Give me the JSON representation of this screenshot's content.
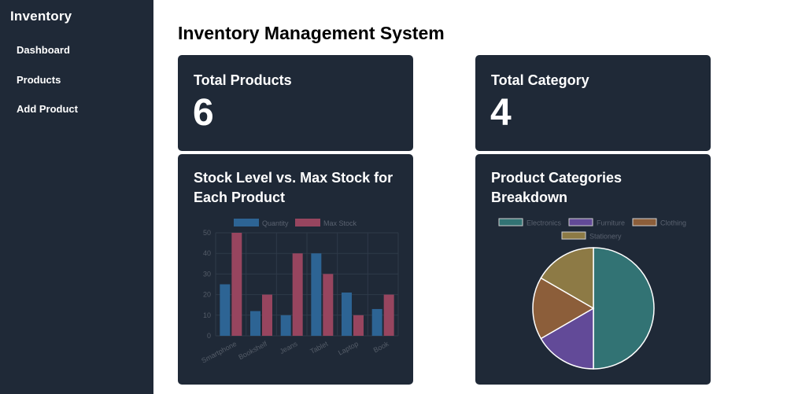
{
  "sidebar": {
    "brand": "Inventory",
    "items": [
      {
        "label": "Dashboard"
      },
      {
        "label": "Products"
      },
      {
        "label": "Add Product"
      }
    ]
  },
  "main": {
    "title": "Inventory Management System",
    "stats": [
      {
        "label": "Total Products",
        "value": "6"
      },
      {
        "label": "Total Category",
        "value": "4"
      }
    ]
  },
  "colors": {
    "sidebar_bg": "#1f2937",
    "card_bg": "#1f2937",
    "quantity": "#2d6494",
    "max_stock": "#97455f",
    "electronics": "#327374",
    "furniture": "#624a98",
    "clothing": "#8c5e3a",
    "stationery": "#8d7a45"
  },
  "chart_data": [
    {
      "type": "bar",
      "title_lines": [
        "Stock Level vs. Max Stock for",
        "Each Product"
      ],
      "categories": [
        "Smartphone",
        "Bookshelf",
        "Jeans",
        "Tablet",
        "Laptop",
        "Book"
      ],
      "series": [
        {
          "name": "Quantity",
          "values": [
            25,
            12,
            10,
            40,
            21,
            13
          ]
        },
        {
          "name": "Max Stock",
          "values": [
            50,
            20,
            40,
            30,
            10,
            20
          ]
        }
      ],
      "ylim": [
        0,
        50
      ],
      "yticks": [
        0,
        10,
        20,
        30,
        40,
        50
      ],
      "grid": true,
      "legend": "top"
    },
    {
      "type": "pie",
      "title_lines": [
        "Product Categories",
        "Breakdown"
      ],
      "labels": [
        "Electronics",
        "Furniture",
        "Clothing",
        "Stationery"
      ],
      "values": [
        50,
        16.67,
        16.67,
        16.67
      ],
      "legend": "top"
    }
  ]
}
